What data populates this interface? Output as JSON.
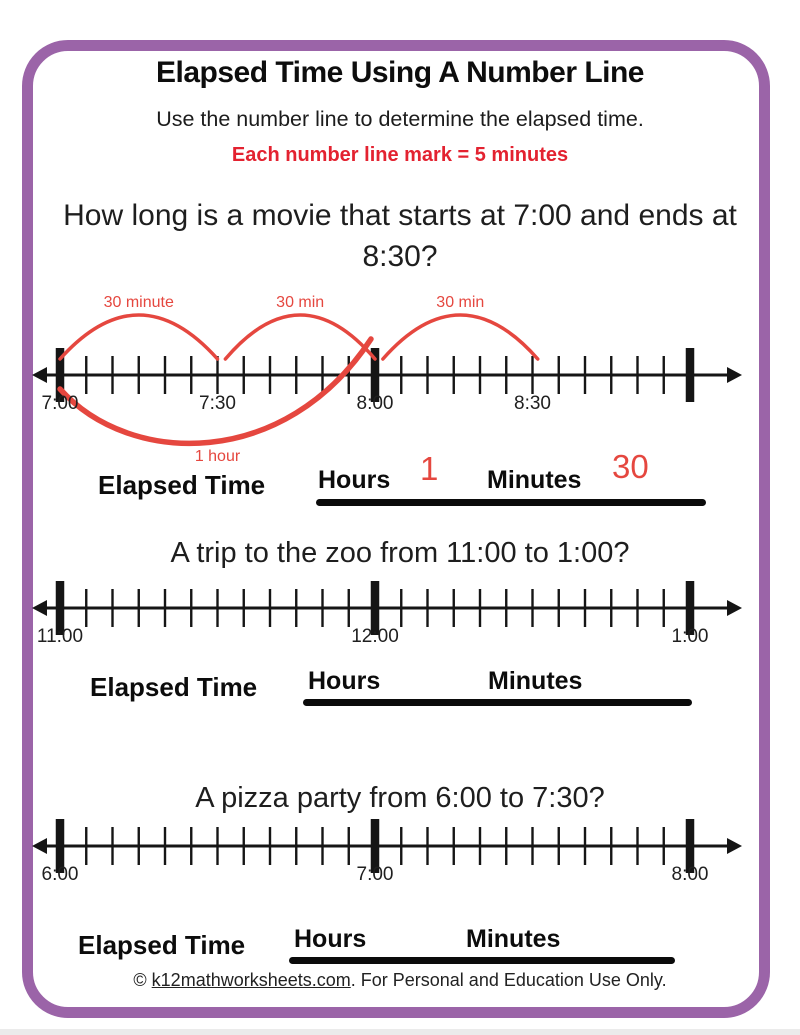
{
  "page": {
    "title": "Elapsed Time Using A Number Line",
    "subtitle": "Use the number line to determine the elapsed time.",
    "instruction": "Each number line mark = 5 minutes",
    "footer_prefix": "© ",
    "footer_link": "k12mathworksheets.com",
    "footer_suffix": ". For Personal and Education Use Only.",
    "border_color": "#9b64a8"
  },
  "colors": {
    "accent_red": "#e5473f",
    "instruction_red": "#e32230",
    "ink": "#151515"
  },
  "labels": {
    "elapsed": "Elapsed Time",
    "hours": "Hours",
    "minutes": "Minutes"
  },
  "problems": [
    {
      "question": "How long is a movie that starts at 7:00 and ends at 8:30?",
      "answers": {
        "hours": "1",
        "minutes": "30"
      },
      "number_line": {
        "tick_interval_minutes": 5,
        "total_ticks": 24,
        "bold_ticks": [
          0,
          12,
          24
        ],
        "labels": [
          {
            "text": "7:00",
            "pos": 0
          },
          {
            "text": "7:30",
            "pos": 6
          },
          {
            "text": "8:00",
            "pos": 12
          },
          {
            "text": "8:30",
            "pos": 18
          }
        ],
        "arcs_above": [
          {
            "label": "30 minute",
            "from": 0,
            "to": 6
          },
          {
            "label": "30 min",
            "from": 6.3,
            "to": 12
          },
          {
            "label": "30 min",
            "from": 12.3,
            "to": 18.2
          }
        ],
        "arc_below": {
          "label": "1 hour",
          "from": 0,
          "to": 12
        }
      }
    },
    {
      "question": "A trip to the zoo from 11:00 to 1:00?",
      "answers": {
        "hours": "",
        "minutes": ""
      },
      "number_line": {
        "tick_interval_minutes": 5,
        "total_ticks": 24,
        "bold_ticks": [
          0,
          12,
          24
        ],
        "labels": [
          {
            "text": "11:00",
            "pos": 0
          },
          {
            "text": "12:00",
            "pos": 12
          },
          {
            "text": "1:00",
            "pos": 24
          }
        ]
      }
    },
    {
      "question": "A pizza party from 6:00 to 7:30?",
      "answers": {
        "hours": "",
        "minutes": ""
      },
      "number_line": {
        "tick_interval_minutes": 5,
        "total_ticks": 24,
        "bold_ticks": [
          0,
          12,
          24
        ],
        "labels": [
          {
            "text": "6:00",
            "pos": 0
          },
          {
            "text": "7:00",
            "pos": 12
          },
          {
            "text": "8:00",
            "pos": 24
          }
        ]
      }
    }
  ]
}
